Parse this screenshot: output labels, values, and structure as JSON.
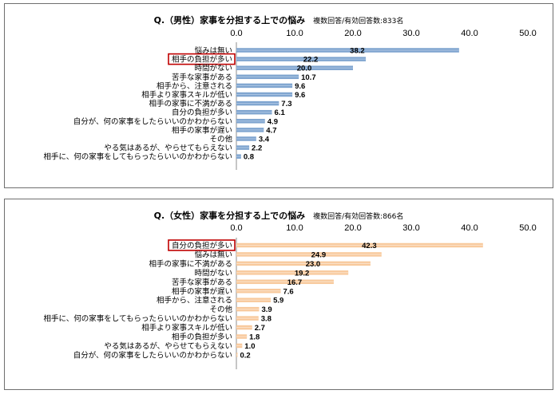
{
  "chart_data": [
    {
      "type": "bar",
      "orientation": "horizontal",
      "title": "Q.（男性）家事を分担する上での悩み",
      "subtitle": "複数回答/有効回答数:833名",
      "xlim": [
        0,
        50
      ],
      "ticks": [
        "0.0",
        "10.0",
        "20.0",
        "30.0",
        "40.0",
        "50.0"
      ],
      "tick_values": [
        0,
        10,
        20,
        30,
        40,
        50
      ],
      "bar_color": "#7ea4cf",
      "highlight_color": "#c00000",
      "highlighted_category": "相手の負担が多い",
      "categories": [
        "悩みは無い",
        "相手の負担が多い",
        "時間がない",
        "苦手な家事がある",
        "相手から、注意される",
        "相手より家事スキルが低い",
        "相手の家事に不満がある",
        "自分の負担が多い",
        "自分が、何の家事をしたらいいのかわからない",
        "相手の家事が遅い",
        "その他",
        "やる気はあるが、やらせてもらえない",
        "相手に、何の家事をしてもらったらいいのかわからない"
      ],
      "values": [
        38.2,
        22.2,
        20.0,
        10.7,
        9.6,
        9.6,
        7.3,
        6.1,
        4.9,
        4.7,
        3.4,
        2.2,
        0.8
      ],
      "labels": [
        "38.2",
        "22.2",
        "20.0",
        "10.7",
        "9.6",
        "9.6",
        "7.3",
        "6.1",
        "4.9",
        "4.7",
        "3.4",
        "2.2",
        "0.8"
      ]
    },
    {
      "type": "bar",
      "orientation": "horizontal",
      "title": "Q.（女性）家事を分担する上での悩み",
      "subtitle": "複数回答/有効回答数:866名",
      "xlim": [
        0,
        50
      ],
      "ticks": [
        "0.0",
        "10.0",
        "20.0",
        "30.0",
        "40.0",
        "50.0"
      ],
      "tick_values": [
        0,
        10,
        20,
        30,
        40,
        50
      ],
      "bar_color": "#f8c99c",
      "highlight_color": "#c00000",
      "highlighted_category": "自分の負担が多い",
      "categories": [
        "自分の負担が多い",
        "悩みは無い",
        "相手の家事に不満がある",
        "時間がない",
        "苦手な家事がある",
        "相手の家事が遅い",
        "相手から、注意される",
        "その他",
        "相手に、何の家事をしてもらったらいいのかわからない",
        "相手より家事スキルが低い",
        "相手の負担が多い",
        "やる気はあるが、やらせてもらえない",
        "自分が、何の家事をしたらいいのかわからない"
      ],
      "values": [
        42.3,
        24.9,
        23.0,
        19.2,
        16.7,
        7.6,
        5.9,
        3.9,
        3.8,
        2.7,
        1.8,
        1.0,
        0.2
      ],
      "labels": [
        "42.3",
        "24.9",
        "23.0",
        "19.2",
        "16.7",
        "7.6",
        "5.9",
        "3.9",
        "3.8",
        "2.7",
        "1.8",
        "1.0",
        "0.2"
      ]
    }
  ]
}
